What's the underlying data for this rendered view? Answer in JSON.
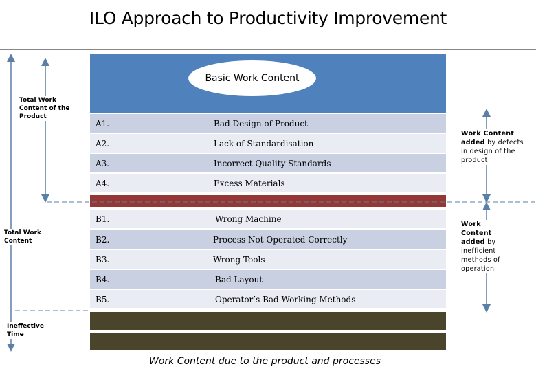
{
  "title": "ILO Approach to Productivity Improvement",
  "basic_work_content": "Basic Work Content",
  "rows_a": [
    {
      "code": "A1.",
      "label": "Bad Design of Product"
    },
    {
      "code": "A2.",
      "label": "Lack of Standardisation"
    },
    {
      "code": "A3.",
      "label": "Incorrect Quality Standards"
    },
    {
      "code": "A4.",
      "label": "Excess Materials"
    }
  ],
  "rows_b": [
    {
      "code": "B1.",
      "label": "Wrong Machine"
    },
    {
      "code": "B2.",
      "label": "Process Not Operated Correctly"
    },
    {
      "code": "B3.",
      "label": "Wrong Tools"
    },
    {
      "code": "B4.",
      "label": "Bad Layout"
    },
    {
      "code": "B5.",
      "label": "Operator’s Bad Working Methods"
    }
  ],
  "left_labels": {
    "total_work_content_product": "Total Work Content of the Product",
    "total_work_content": "Total Work Content",
    "ineffective_time": "Ineffective Time"
  },
  "right_labels": {
    "defects_bold": "Work Content added",
    "defects_rest": " by defects in design of the product",
    "methods_bold": "Work Content added",
    "methods_rest": " by inefficient methods of operation"
  },
  "footer": "Work Content due to the product and processes",
  "colors": {
    "blue": "#4f81bd",
    "row_dark": "#c9d0e1",
    "row_light": "#e9ecf3",
    "red": "#953734",
    "olive": "#4a442a",
    "arrow": "#5b7fa6"
  }
}
